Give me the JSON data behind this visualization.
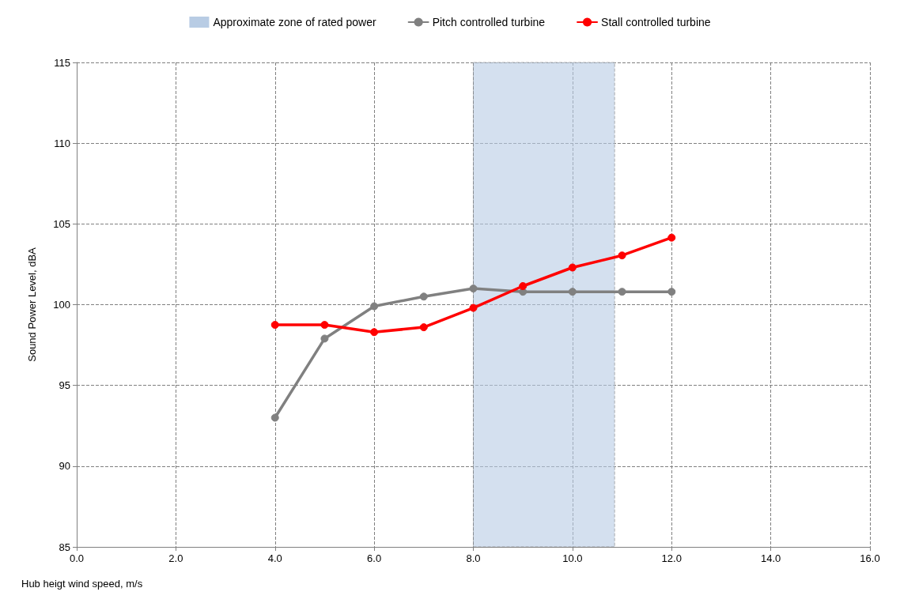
{
  "chart_data": {
    "type": "line",
    "xlabel": "Hub heigt wind speed, m/s",
    "ylabel": "Sound Power Level, dBA",
    "x": [
      4,
      5,
      6,
      7,
      8,
      9,
      10,
      11,
      12
    ],
    "series": [
      {
        "name": "Pitch controlled turbine",
        "color": "#808080",
        "values": [
          93.0,
          97.9,
          99.9,
          100.5,
          101.0,
          100.8,
          100.8,
          100.8,
          100.8
        ]
      },
      {
        "name": "Stall controlled turbine",
        "color": "#ff0000",
        "values": [
          98.75,
          98.75,
          98.3,
          98.6,
          99.8,
          101.15,
          102.3,
          103.05,
          104.15
        ]
      }
    ],
    "bands": [
      {
        "axis": "x",
        "from": 8,
        "to": 10.85,
        "label": "Approximate zone of rated power",
        "color": "#b8cce4"
      }
    ],
    "xlim": [
      0,
      16
    ],
    "ylim": [
      85,
      115
    ],
    "xticks": [
      {
        "value": 0,
        "label": "0.0"
      },
      {
        "value": 2,
        "label": "2.0"
      },
      {
        "value": 4,
        "label": "4.0"
      },
      {
        "value": 6,
        "label": "6.0"
      },
      {
        "value": 8,
        "label": "8.0"
      },
      {
        "value": 10,
        "label": "10.0"
      },
      {
        "value": 12,
        "label": "12.0"
      },
      {
        "value": 14,
        "label": "14.0"
      },
      {
        "value": 16,
        "label": "16.0"
      }
    ],
    "yticks": [
      85,
      90,
      95,
      100,
      105,
      110,
      115
    ],
    "grid": true,
    "legend": "top",
    "marker": "circle",
    "line_style": "solid"
  }
}
